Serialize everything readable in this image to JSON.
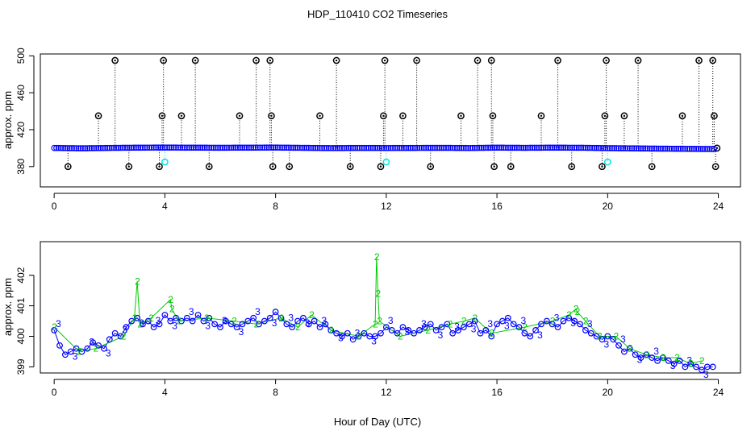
{
  "title": "HDP_110410  CO2 Timeseries",
  "xlabel": "Hour of Day (UTC)",
  "colors": {
    "frame": "#000000",
    "raw_points": "#0000ff",
    "flag": "#000000",
    "cyan": "#00e5e5",
    "series2": "#00cc00",
    "series3": "#0000ff"
  },
  "chart_data": [
    {
      "type": "scatter",
      "panel": "top",
      "title": "HDP_110410  CO2 Timeseries",
      "ylabel": "approx. ppm",
      "xlim": [
        -0.5,
        24.8
      ],
      "ylim": [
        358,
        502
      ],
      "x_ticks": [
        0,
        4,
        8,
        12,
        16,
        20,
        24
      ],
      "y_ticks": [
        380,
        420,
        460,
        500
      ],
      "baseline": {
        "x": [
          0,
          1,
          2,
          3,
          4,
          5,
          6,
          7,
          8,
          9,
          10,
          11,
          12,
          13,
          14,
          15,
          16,
          17,
          18,
          19,
          20,
          21,
          22,
          23,
          23.8
        ],
        "y": [
          400.2,
          399.8,
          400.2,
          400.5,
          400.6,
          400.5,
          400.4,
          400.5,
          400.6,
          400.3,
          400.0,
          400.2,
          400.1,
          400.2,
          400.3,
          400.1,
          400.5,
          400.3,
          400.5,
          400.4,
          400.0,
          399.7,
          399.4,
          399.2,
          399.0
        ]
      },
      "flag_points": [
        {
          "x": 0.5,
          "y": 380
        },
        {
          "x": 1.6,
          "y": 435
        },
        {
          "x": 2.2,
          "y": 495
        },
        {
          "x": 2.7,
          "y": 380
        },
        {
          "x": 3.8,
          "y": 380
        },
        {
          "x": 3.9,
          "y": 435
        },
        {
          "x": 3.95,
          "y": 495
        },
        {
          "x": 4.6,
          "y": 435
        },
        {
          "x": 5.1,
          "y": 495
        },
        {
          "x": 5.6,
          "y": 380
        },
        {
          "x": 6.7,
          "y": 435
        },
        {
          "x": 7.3,
          "y": 495
        },
        {
          "x": 7.8,
          "y": 495
        },
        {
          "x": 7.85,
          "y": 435
        },
        {
          "x": 7.9,
          "y": 380
        },
        {
          "x": 8.5,
          "y": 380
        },
        {
          "x": 9.6,
          "y": 435
        },
        {
          "x": 10.2,
          "y": 495
        },
        {
          "x": 10.7,
          "y": 380
        },
        {
          "x": 11.8,
          "y": 380
        },
        {
          "x": 11.9,
          "y": 435
        },
        {
          "x": 11.95,
          "y": 495
        },
        {
          "x": 12.6,
          "y": 435
        },
        {
          "x": 13.1,
          "y": 495
        },
        {
          "x": 13.6,
          "y": 380
        },
        {
          "x": 14.7,
          "y": 435
        },
        {
          "x": 15.3,
          "y": 495
        },
        {
          "x": 15.8,
          "y": 495
        },
        {
          "x": 15.85,
          "y": 435
        },
        {
          "x": 15.9,
          "y": 380
        },
        {
          "x": 16.5,
          "y": 380
        },
        {
          "x": 17.6,
          "y": 435
        },
        {
          "x": 18.2,
          "y": 495
        },
        {
          "x": 18.7,
          "y": 380
        },
        {
          "x": 19.8,
          "y": 380
        },
        {
          "x": 19.9,
          "y": 435
        },
        {
          "x": 19.95,
          "y": 495
        },
        {
          "x": 20.6,
          "y": 435
        },
        {
          "x": 21.1,
          "y": 495
        },
        {
          "x": 21.6,
          "y": 380
        },
        {
          "x": 22.7,
          "y": 435
        },
        {
          "x": 23.3,
          "y": 495
        },
        {
          "x": 23.8,
          "y": 495
        },
        {
          "x": 23.85,
          "y": 435
        },
        {
          "x": 23.9,
          "y": 380
        },
        {
          "x": 23.95,
          "y": 400
        }
      ],
      "cyan_points": [
        {
          "x": 4.0,
          "y": 385
        },
        {
          "x": 12.0,
          "y": 385
        },
        {
          "x": 20.0,
          "y": 385
        }
      ]
    },
    {
      "type": "scatter",
      "panel": "bottom",
      "ylabel": "approx. ppm",
      "xlabel": "Hour of Day (UTC)",
      "xlim": [
        -0.5,
        24.8
      ],
      "ylim": [
        398.8,
        403.1
      ],
      "x_ticks": [
        0,
        4,
        8,
        12,
        16,
        20,
        24
      ],
      "y_ticks": [
        399,
        400,
        401,
        402
      ],
      "series": [
        {
          "name": "3",
          "x": [
            0,
            0.2,
            0.4,
            0.6,
            0.8,
            1.0,
            1.2,
            1.4,
            1.6,
            1.8,
            2.0,
            2.2,
            2.4,
            2.6,
            2.8,
            3.0,
            3.2,
            3.4,
            3.6,
            3.8,
            4.0,
            4.2,
            4.4,
            4.6,
            4.8,
            5.0,
            5.2,
            5.4,
            5.6,
            5.8,
            6.0,
            6.2,
            6.4,
            6.6,
            6.8,
            7.0,
            7.2,
            7.4,
            7.6,
            7.8,
            8.0,
            8.2,
            8.4,
            8.6,
            8.8,
            9.0,
            9.2,
            9.4,
            9.6,
            9.8,
            10.0,
            10.2,
            10.4,
            10.6,
            10.8,
            11.0,
            11.2,
            11.4,
            11.6,
            11.8,
            12.0,
            12.2,
            12.4,
            12.6,
            12.8,
            13.0,
            13.2,
            13.4,
            13.6,
            13.8,
            14.0,
            14.2,
            14.4,
            14.6,
            14.8,
            15.0,
            15.2,
            15.4,
            15.6,
            15.8,
            16.0,
            16.2,
            16.4,
            16.6,
            16.8,
            17.0,
            17.2,
            17.4,
            17.6,
            17.8,
            18.0,
            18.2,
            18.4,
            18.6,
            18.8,
            19.0,
            19.2,
            19.4,
            19.6,
            19.8,
            20.0,
            20.2,
            20.4,
            20.6,
            20.8,
            21.0,
            21.2,
            21.4,
            21.6,
            21.8,
            22.0,
            22.2,
            22.4,
            22.6,
            22.8,
            23.0,
            23.2,
            23.4,
            23.6,
            23.8
          ],
          "values": [
            400.2,
            399.7,
            399.4,
            399.5,
            399.6,
            399.5,
            399.6,
            399.8,
            399.7,
            399.6,
            399.9,
            400.1,
            400.0,
            400.3,
            400.5,
            400.6,
            400.4,
            400.5,
            400.3,
            400.4,
            400.7,
            400.5,
            400.6,
            400.5,
            400.6,
            400.5,
            400.7,
            400.5,
            400.6,
            400.4,
            400.3,
            400.5,
            400.4,
            400.3,
            400.4,
            400.5,
            400.6,
            400.4,
            400.5,
            400.6,
            400.8,
            400.6,
            400.4,
            400.3,
            400.5,
            400.6,
            400.4,
            400.5,
            400.3,
            400.4,
            400.2,
            400.1,
            400.0,
            400.1,
            399.9,
            400.0,
            400.1,
            400.0,
            400.0,
            400.1,
            400.3,
            400.2,
            400.1,
            400.3,
            400.2,
            400.1,
            400.2,
            400.3,
            400.4,
            400.2,
            400.3,
            400.4,
            400.1,
            400.2,
            400.3,
            400.4,
            400.5,
            400.1,
            400.2,
            400.0,
            400.4,
            400.5,
            400.6,
            400.4,
            400.3,
            400.1,
            400.0,
            400.2,
            400.4,
            400.5,
            400.4,
            400.3,
            400.5,
            400.6,
            400.5,
            400.4,
            400.2,
            400.1,
            400.0,
            399.9,
            400.0,
            399.9,
            399.7,
            399.5,
            399.6,
            399.4,
            399.3,
            399.4,
            399.3,
            399.2,
            399.3,
            399.2,
            399.1,
            399.2,
            399.0,
            399.1,
            399.0,
            398.9,
            399.0,
            399.0
          ]
        },
        {
          "name": "2",
          "x": [
            0.0,
            0.9,
            1.5,
            2.5,
            2.9,
            3.0,
            3.1,
            3.5,
            4.2,
            4.25,
            4.5,
            5.5,
            6.5,
            7.3,
            8.2,
            8.8,
            9.3,
            10.0,
            11.0,
            11.6,
            11.65,
            11.7,
            11.75,
            12.5,
            13.5,
            14.3,
            14.8,
            15.2,
            15.8,
            17.0,
            18.0,
            18.6,
            18.85,
            18.9,
            19.2,
            19.7,
            20.3,
            20.8,
            21.4,
            22.0,
            22.5,
            23.0,
            23.4
          ],
          "values": [
            400.3,
            399.5,
            399.6,
            400.0,
            400.6,
            401.8,
            400.4,
            400.6,
            401.2,
            400.9,
            400.5,
            400.6,
            400.5,
            400.4,
            400.6,
            400.3,
            400.7,
            400.2,
            400.0,
            400.4,
            402.6,
            401.4,
            400.5,
            400.0,
            400.2,
            400.4,
            400.5,
            400.6,
            400.1,
            400.3,
            400.5,
            400.7,
            400.9,
            400.8,
            400.5,
            400.0,
            400.0,
            399.6,
            399.4,
            399.3,
            399.3,
            399.1,
            399.2
          ]
        }
      ]
    }
  ]
}
